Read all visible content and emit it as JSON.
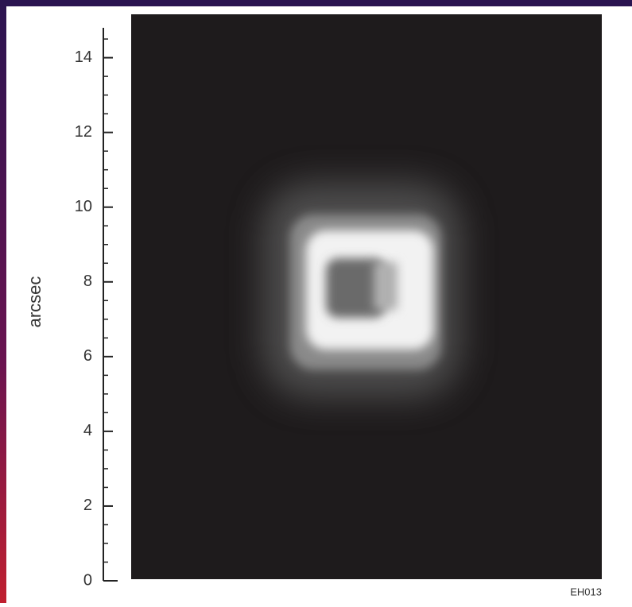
{
  "chart_data": {
    "type": "image",
    "ylabel": "arcsec",
    "annotation": "EH013",
    "ylim": [
      0,
      14.8
    ],
    "yticks": [
      0,
      2,
      4,
      6,
      8,
      10,
      12,
      14
    ],
    "color": "#1e1b1c"
  }
}
